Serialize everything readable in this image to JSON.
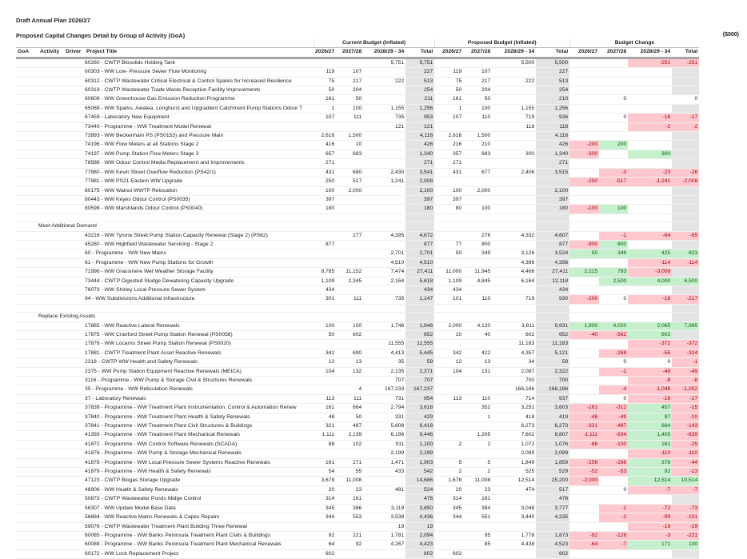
{
  "header": {
    "title": "Draft Annual Plan 2026/27",
    "subtitle": "Proposed Capital Changes Detail by Group of Activity (GoA)",
    "units": "($000)"
  },
  "column_groups": {
    "current": "Current Budget (Inflated)",
    "proposed": "Proposed Budget (Inflated)",
    "change": "Budget Change"
  },
  "columns": {
    "goa": "GoA",
    "activity": "Activity",
    "driver": "Driver",
    "project_title": "Project Title",
    "y1": "2026/27",
    "y2": "2027/28",
    "y3": "2028/29 - 34",
    "total": "Total"
  },
  "colors": {
    "negative_bg": "#ffc7ce",
    "negative_text": "#9c0006",
    "positive_bg": "#c6efce",
    "positive_text": "#006100",
    "total_bg": "#e4e4e4"
  },
  "rows": [
    {
      "type": "item",
      "title": "60260 - CWTP Biosolids Holding Tank",
      "current": [
        "",
        "",
        "5,751",
        "5,751"
      ],
      "proposed": [
        "",
        "",
        "5,500",
        "5,500"
      ],
      "change": [
        "",
        "",
        "-251",
        "-251"
      ]
    },
    {
      "type": "item",
      "title": "60303 - WW Low- Pressure Sewer Flow Monitoring",
      "current": [
        "119",
        "107",
        "",
        "227"
      ],
      "proposed": [
        "119",
        "107",
        "",
        "227"
      ],
      "change": [
        "",
        "",
        "",
        ""
      ]
    },
    {
      "type": "item",
      "title": "60312 - CWTP Wastewater Critical Electrical & Control Spares for Increased Resilience",
      "current": [
        "75",
        "217",
        "222",
        "513"
      ],
      "proposed": [
        "75",
        "217",
        "222",
        "513"
      ],
      "change": [
        "",
        "",
        "",
        ""
      ]
    },
    {
      "type": "item",
      "title": "60319 - CWTP Wastewater Trade Waste Reception Facility Improvements",
      "current": [
        "50",
        "204",
        "",
        "254"
      ],
      "proposed": [
        "50",
        "204",
        "",
        "254"
      ],
      "change": [
        "",
        "",
        "",
        ""
      ]
    },
    {
      "type": "item",
      "title": "60609 - WW Greenhouse Gas Emission Reduction Programme",
      "current": [
        "161",
        "50",
        "",
        "211"
      ],
      "proposed": [
        "161",
        "50",
        "",
        "210"
      ],
      "change": [
        "",
        "0",
        "",
        "0"
      ]
    },
    {
      "type": "item",
      "title": "65068 - WW Sparks, Awatea, Longhurst and Upgradient Catchment Pump Stations Odour T",
      "current": [
        "1",
        "100",
        "1,155",
        "1,256"
      ],
      "proposed": [
        "1",
        "100",
        "1,155",
        "1,256"
      ],
      "change": [
        "",
        "",
        "",
        ""
      ]
    },
    {
      "type": "item",
      "title": "67459 - Laboratory New Equipment",
      "current": [
        "107",
        "111",
        "735",
        "953"
      ],
      "proposed": [
        "107",
        "110",
        "719",
        "936"
      ],
      "change": [
        "",
        "0",
        "-16",
        "-17"
      ]
    },
    {
      "type": "item",
      "title": "73440 - Programme - WW Treatment Model Renewal",
      "current": [
        "",
        "",
        "121",
        "121"
      ],
      "proposed": [
        "",
        "",
        "118",
        "118"
      ],
      "change": [
        "",
        "",
        "-2",
        "-2"
      ]
    },
    {
      "type": "item",
      "title": "73993 - WW Beckenham PS (PS0153) and Pressure Main",
      "current": [
        "2,616",
        "1,500",
        "",
        "4,116"
      ],
      "proposed": [
        "2,616",
        "1,500",
        "",
        "4,116"
      ],
      "change": [
        "",
        "",
        "",
        ""
      ]
    },
    {
      "type": "item",
      "title": "74196 - WW Flow Meters at all Stations Stage 2",
      "current": [
        "416",
        "10",
        "",
        "426"
      ],
      "proposed": [
        "216",
        "210",
        "",
        "426"
      ],
      "change": [
        "-200",
        "200",
        "",
        ""
      ]
    },
    {
      "type": "item",
      "title": "74197 - WW Pump Station Flow Meters Stage 3",
      "current": [
        "657",
        "683",
        "",
        "1,340"
      ],
      "proposed": [
        "357",
        "683",
        "300",
        "1,340"
      ],
      "change": [
        "-300",
        "",
        "300",
        ""
      ]
    },
    {
      "type": "item",
      "title": "76588 - WW Odour Control Media Replacement and Improvements",
      "current": [
        "271",
        "",
        "",
        "271"
      ],
      "proposed": [
        "271",
        "",
        "",
        "271"
      ],
      "change": [
        "",
        "",
        "",
        ""
      ]
    },
    {
      "type": "item",
      "title": "77980 - WW Kevin Street Overflow Reduction (PS42/1)",
      "current": [
        "431",
        "680",
        "2,430",
        "3,541"
      ],
      "proposed": [
        "431",
        "677",
        "2,406",
        "3,515"
      ],
      "change": [
        "",
        "-3",
        "-23",
        "-26"
      ]
    },
    {
      "type": "item",
      "title": "77981 - WW PS21 Eastern WW Upgrade",
      "current": [
        "250",
        "517",
        "1,241",
        "2,008"
      ],
      "proposed": [
        "",
        "",
        "",
        ""
      ],
      "change": [
        "-250",
        "-517",
        "-1,241",
        "-2,008"
      ]
    },
    {
      "type": "item",
      "title": "80175 - WW Wainui WWTP Relocation",
      "current": [
        "100",
        "2,000",
        "",
        "2,100"
      ],
      "proposed": [
        "100",
        "2,000",
        "",
        "2,100"
      ],
      "change": [
        "",
        "",
        "",
        ""
      ]
    },
    {
      "type": "item",
      "title": "80443 - WW Keyes Odour Control (PS0035)",
      "current": [
        "397",
        "",
        "",
        "397"
      ],
      "proposed": [
        "397",
        "",
        "",
        "397"
      ],
      "change": [
        "",
        "",
        "",
        ""
      ]
    },
    {
      "type": "item",
      "title": "80598 - WW Marshlands Odour Control (PS0040)",
      "current": [
        "180",
        "",
        "",
        "180"
      ],
      "proposed": [
        "80",
        "100",
        "",
        "180"
      ],
      "change": [
        "-100",
        "100",
        "",
        ""
      ]
    },
    {
      "type": "blank"
    },
    {
      "type": "group",
      "label": "Meet Additional Demand"
    },
    {
      "type": "item",
      "title": "43216 - WW Tyrone Street Pump Station Capacity Renewal (Stage 2) (PS62)",
      "current": [
        "",
        "277",
        "4,395",
        "4,672"
      ],
      "proposed": [
        "",
        "276",
        "4,332",
        "4,607"
      ],
      "change": [
        "",
        "-1",
        "-64",
        "-65"
      ]
    },
    {
      "type": "item",
      "title": "45280 - WW Highfield Wastewater Servicing - Stage 2",
      "current": [
        "877",
        "",
        "",
        "877"
      ],
      "proposed": [
        "77",
        "800",
        "",
        "877"
      ],
      "change": [
        "-800",
        "800",
        "",
        ""
      ]
    },
    {
      "type": "item",
      "title": "60 - Programme - WW New Mains",
      "current": [
        "",
        "",
        "2,701",
        "2,701"
      ],
      "proposed": [
        "50",
        "349",
        "3,126",
        "3,524"
      ],
      "change": [
        "50",
        "349",
        "425",
        "823"
      ]
    },
    {
      "type": "item",
      "title": "61 - Programme - WW New Pump Stations for Growth",
      "current": [
        "",
        "",
        "4,510",
        "4,510"
      ],
      "proposed": [
        "",
        "",
        "4,396",
        "4,396"
      ],
      "change": [
        "",
        "",
        "-114",
        "-114"
      ]
    },
    {
      "type": "item",
      "title": "71996 - WW Grassmere Wet Weather Storage Facility",
      "current": [
        "8,785",
        "11,152",
        "7,474",
        "27,411"
      ],
      "proposed": [
        "11,000",
        "11,945",
        "4,466",
        "27,411"
      ],
      "change": [
        "2,215",
        "793",
        "-3,008",
        ""
      ]
    },
    {
      "type": "item",
      "title": "73444 - CWTP Digested Sludge Dewatering Capacity Upgrade",
      "current": [
        "1,109",
        "2,345",
        "2,164",
        "5,618"
      ],
      "proposed": [
        "1,109",
        "4,845",
        "6,164",
        "12,118"
      ],
      "change": [
        "",
        "2,500",
        "4,000",
        "6,500"
      ]
    },
    {
      "type": "item",
      "title": "76073 - WW Shirley Local Pressure Sewer System",
      "current": [
        "434",
        "",
        "",
        "434"
      ],
      "proposed": [
        "434",
        "",
        "",
        "434"
      ],
      "change": [
        "",
        "",
        "",
        ""
      ]
    },
    {
      "type": "item",
      "title": "94 - WW Subdivisions Additional Infrastructure",
      "current": [
        "301",
        "111",
        "735",
        "1,147"
      ],
      "proposed": [
        "101",
        "110",
        "719",
        "930"
      ],
      "change": [
        "-200",
        "0",
        "-16",
        "-217"
      ]
    },
    {
      "type": "blank"
    },
    {
      "type": "group",
      "label": "Replace Existing Assets"
    },
    {
      "type": "item",
      "title": "17865 - WW Reactive Lateral  Renewals",
      "current": [
        "100",
        "100",
        "1,746",
        "1,946"
      ],
      "proposed": [
        "2,000",
        "4,120",
        "3,811",
        "9,931"
      ],
      "change": [
        "1,900",
        "4,020",
        "2,065",
        "7,985"
      ]
    },
    {
      "type": "item",
      "title": "17875 - WW Cranford Street Pump Station Renewal (PS0058)",
      "current": [
        "50",
        "602",
        "",
        "652"
      ],
      "proposed": [
        "10",
        "40",
        "602",
        "652"
      ],
      "change": [
        "-40",
        "-562",
        "602",
        ""
      ]
    },
    {
      "type": "item",
      "title": "17876 - WW Locarno Street Pump Station Renewal (PS0020)",
      "current": [
        "",
        "",
        "11,555",
        "11,555"
      ],
      "proposed": [
        "",
        "",
        "11,183",
        "11,183"
      ],
      "change": [
        "",
        "",
        "-372",
        "-372"
      ]
    },
    {
      "type": "item",
      "title": "17881 - CWTP Treatment Plant Asset Reactive Renewals",
      "current": [
        "342",
        "690",
        "4,413",
        "5,445"
      ],
      "proposed": [
        "342",
        "422",
        "4,357",
        "5,121"
      ],
      "change": [
        "",
        "-268",
        "-55",
        "-324"
      ]
    },
    {
      "type": "item",
      "title": "2318 - CWTP WW Health and Safety Renewals",
      "current": [
        "12",
        "13",
        "35",
        "59"
      ],
      "proposed": [
        "12",
        "13",
        "34",
        "59"
      ],
      "change": [
        "",
        "0",
        "0",
        "-1"
      ]
    },
    {
      "type": "item",
      "title": "2375 - WW Pump Station Equipment Reactive Renewals (MEICA)",
      "current": [
        "104",
        "132",
        "2,135",
        "2,371"
      ],
      "proposed": [
        "104",
        "131",
        "2,087",
        "2,322"
      ],
      "change": [
        "",
        "-1",
        "-48",
        "-49"
      ]
    },
    {
      "type": "item",
      "title": "3116 - Programme - WW Pump & Storage Civil & Structures Renewals",
      "current": [
        "",
        "",
        "707",
        "707"
      ],
      "proposed": [
        "",
        "",
        "700",
        "700"
      ],
      "change": [
        "",
        "",
        "-8",
        "-8"
      ]
    },
    {
      "type": "item",
      "title": "35 - Programme - WW Reticulation Renewals",
      "current": [
        "",
        "4",
        "167,233",
        "167,237"
      ],
      "proposed": [
        "",
        "",
        "166,186",
        "166,186"
      ],
      "change": [
        "",
        "-4",
        "-1,048",
        "-1,052"
      ]
    },
    {
      "type": "item",
      "title": "37 - Laboratory Renewals",
      "current": [
        "113",
        "111",
        "731",
        "954"
      ],
      "proposed": [
        "113",
        "110",
        "714",
        "937"
      ],
      "change": [
        "",
        "0",
        "-16",
        "-17"
      ]
    },
    {
      "type": "item",
      "title": "37839 - Programme - WW Treatment Plant Instrumentation, Control & Automation Renew",
      "current": [
        "161",
        "664",
        "2,794",
        "3,618"
      ],
      "proposed": [
        "",
        "352",
        "3,251",
        "3,603"
      ],
      "change": [
        "-161",
        "-312",
        "457",
        "-15"
      ]
    },
    {
      "type": "item",
      "title": "37840 - Programme - WW Treatment Plant Health & Safety Renewals",
      "current": [
        "48",
        "50",
        "331",
        "429"
      ],
      "proposed": [
        "",
        "1",
        "418",
        "419"
      ],
      "change": [
        "-48",
        "-49",
        "87",
        "-10"
      ]
    },
    {
      "type": "item",
      "title": "37841 - Programme - WW Treatment Plant Civil Structures & Buildings",
      "current": [
        "321",
        "487",
        "5,608",
        "6,416"
      ],
      "proposed": [
        "",
        "",
        "6,273",
        "6,273"
      ],
      "change": [
        "-321",
        "-487",
        "664",
        "-143"
      ]
    },
    {
      "type": "item",
      "title": "41393 - Programme - WW Treatment Plant Mechanical Renewals",
      "current": [
        "1,111",
        "2,139",
        "6,196",
        "9,446"
      ],
      "proposed": [
        "",
        "1,205",
        "7,602",
        "8,807"
      ],
      "change": [
        "-1,111",
        "-934",
        "1,405",
        "-639"
      ]
    },
    {
      "type": "item",
      "title": "41872 - Programme - WW Control Software Renewals (SCADA)",
      "current": [
        "88",
        "102",
        "911",
        "1,100"
      ],
      "proposed": [
        "2",
        "2",
        "1,072",
        "1,076"
      ],
      "change": [
        "-86",
        "-100",
        "161",
        "-25"
      ]
    },
    {
      "type": "item",
      "title": "41876 - Programme - WW Pump & Storage Mechanical Renewals",
      "current": [
        "",
        "",
        "2,199",
        "2,199"
      ],
      "proposed": [
        "",
        "",
        "2,089",
        "2,089"
      ],
      "change": [
        "",
        "",
        "-110",
        "-110"
      ]
    },
    {
      "type": "item",
      "title": "41878 - Programme - WW Local Pressure Sewer Systems Reactive Renewals",
      "current": [
        "161",
        "271",
        "1,471",
        "1,903"
      ],
      "proposed": [
        "5",
        "5",
        "1,849",
        "1,859"
      ],
      "change": [
        "-156",
        "-266",
        "378",
        "-44"
      ]
    },
    {
      "type": "item",
      "title": "41879 - Programme - WW Health & Safety Renewals",
      "current": [
        "54",
        "55",
        "433",
        "542"
      ],
      "proposed": [
        "2",
        "2",
        "525",
        "529"
      ],
      "change": [
        "-52",
        "-53",
        "92",
        "-13"
      ]
    },
    {
      "type": "item",
      "title": "47123 - CWTP Biogas Storage Upgrade",
      "current": [
        "3,678",
        "11,008",
        "",
        "14,686"
      ],
      "proposed": [
        "1,678",
        "11,008",
        "12,514",
        "25,200"
      ],
      "change": [
        "-2,000",
        "",
        "12,514",
        "10,514"
      ]
    },
    {
      "type": "item",
      "title": "48906 - WW Health & Safety Renewals",
      "current": [
        "20",
        "23",
        "481",
        "524"
      ],
      "proposed": [
        "20",
        "23",
        "474",
        "517"
      ],
      "change": [
        "",
        "0",
        "-7",
        "-7"
      ]
    },
    {
      "type": "item",
      "title": "50873 - CWTP Wastewater Ponds Midge Control",
      "current": [
        "314",
        "161",
        "",
        "476"
      ],
      "proposed": [
        "314",
        "161",
        "",
        "476"
      ],
      "change": [
        "",
        "",
        "",
        ""
      ]
    },
    {
      "type": "item",
      "title": "56307 - WW Update Model Base Data",
      "current": [
        "345",
        "386",
        "3,119",
        "3,850"
      ],
      "proposed": [
        "345",
        "384",
        "3,048",
        "3,777"
      ],
      "change": [
        "",
        "-1",
        "-72",
        "-73"
      ]
    },
    {
      "type": "item",
      "title": "56684 - WW Reactive Mains Renewals & Capex Repairs",
      "current": [
        "344",
        "553",
        "3,538",
        "4,436"
      ],
      "proposed": [
        "344",
        "551",
        "3,440",
        "4,335"
      ],
      "change": [
        "",
        "-2",
        "-99",
        "-101"
      ]
    },
    {
      "type": "item",
      "title": "59076 - CWTP Wastewater Treatment Plant Building Three Renewal",
      "current": [
        "",
        "",
        "19",
        "19"
      ],
      "proposed": [
        "",
        "",
        "",
        ""
      ],
      "change": [
        "",
        "",
        "-19",
        "-19"
      ]
    },
    {
      "type": "item",
      "title": "60085 - Programme - WW Banks Peninsula Treatment Plant Civils & Buildings",
      "current": [
        "92",
        "221",
        "1,781",
        "2,094"
      ],
      "proposed": [
        "",
        "95",
        "1,778",
        "1,873"
      ],
      "change": [
        "-92",
        "-126",
        "-3",
        "-221"
      ]
    },
    {
      "type": "item",
      "title": "60088 - Programme - WW Banks Peninsula Treatment Plant Mechanical Renewals",
      "current": [
        "64",
        "92",
        "4,267",
        "4,423"
      ],
      "proposed": [
        "",
        "85",
        "4,438",
        "4,523"
      ],
      "change": [
        "-64",
        "-7",
        "171",
        "100"
      ]
    },
    {
      "type": "item",
      "title": "60172 - WW Lock Replacement Project",
      "current": [
        "602",
        "",
        "",
        "602"
      ],
      "proposed": [
        "602",
        "",
        "",
        "602"
      ],
      "change": [
        "",
        "",
        "",
        ""
      ]
    }
  ]
}
